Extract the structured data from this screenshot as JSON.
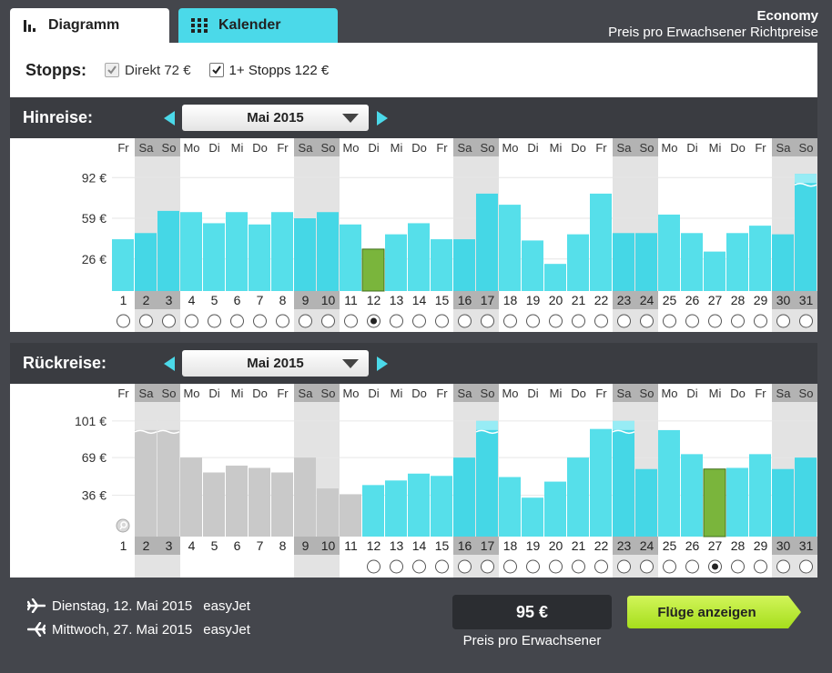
{
  "tabs": {
    "diagram": "Diagramm",
    "calendar": "Kalender"
  },
  "cabin": {
    "class_label": "Economy",
    "price_note": "Preis pro Erwachsener Richtpreise"
  },
  "stops": {
    "label": "Stopps:",
    "direct": "Direkt 72 €",
    "direct_checked": true,
    "direct_disabled": true,
    "one_plus": "1+ Stopps 122 €",
    "one_plus_checked": true
  },
  "chart_data": [
    {
      "type": "bar",
      "title": "Hinreise:",
      "month": "Mai 2015",
      "weekdays": [
        "Fr",
        "Sa",
        "So",
        "Mo",
        "Di",
        "Mi",
        "Do",
        "Fr",
        "Sa",
        "So",
        "Mo",
        "Di",
        "Mi",
        "Do",
        "Fr",
        "Sa",
        "So",
        "Mo",
        "Di",
        "Mi",
        "Do",
        "Fr",
        "Sa",
        "So",
        "Mo",
        "Di",
        "Mi",
        "Do",
        "Fr",
        "Sa",
        "So"
      ],
      "categories": [
        "1",
        "2",
        "3",
        "4",
        "5",
        "6",
        "7",
        "8",
        "9",
        "10",
        "11",
        "12",
        "13",
        "14",
        "15",
        "16",
        "17",
        "18",
        "19",
        "20",
        "21",
        "22",
        "23",
        "24",
        "25",
        "26",
        "27",
        "28",
        "29",
        "30",
        "31"
      ],
      "values": [
        42,
        47,
        65,
        64,
        55,
        64,
        54,
        64,
        59,
        64,
        54,
        34,
        46,
        55,
        42,
        42,
        79,
        70,
        41,
        22,
        46,
        79,
        47,
        47,
        62,
        47,
        32,
        47,
        53,
        46,
        95
      ],
      "yticks": [
        {
          "value": 92,
          "label": "92 €"
        },
        {
          "value": 59,
          "label": "59 €"
        },
        {
          "value": 26,
          "label": "26 €"
        }
      ],
      "ylim": [
        0,
        104
      ],
      "over_range": [
        31
      ],
      "unavailable": [],
      "selected": 12,
      "radio_days": [
        "1",
        "2",
        "3",
        "4",
        "5",
        "6",
        "7",
        "8",
        "9",
        "10",
        "11",
        "12",
        "13",
        "14",
        "15",
        "16",
        "17",
        "18",
        "19",
        "20",
        "21",
        "22",
        "23",
        "24",
        "25",
        "26",
        "27",
        "28",
        "29",
        "30",
        "31"
      ]
    },
    {
      "type": "bar",
      "title": "Rückreise:",
      "month": "Mai 2015",
      "weekdays": [
        "Fr",
        "Sa",
        "So",
        "Mo",
        "Di",
        "Mi",
        "Do",
        "Fr",
        "Sa",
        "So",
        "Mo",
        "Di",
        "Mi",
        "Do",
        "Fr",
        "Sa",
        "So",
        "Mo",
        "Di",
        "Mi",
        "Do",
        "Fr",
        "Sa",
        "So",
        "Mo",
        "Di",
        "Mi",
        "Do",
        "Fr",
        "Sa",
        "So"
      ],
      "categories": [
        "1",
        "2",
        "3",
        "4",
        "5",
        "6",
        "7",
        "8",
        "9",
        "10",
        "11",
        "12",
        "13",
        "14",
        "15",
        "16",
        "17",
        "18",
        "19",
        "20",
        "21",
        "22",
        "23",
        "24",
        "25",
        "26",
        "27",
        "28",
        "29",
        "30",
        "31"
      ],
      "values": [
        0,
        101,
        101,
        69,
        56,
        62,
        60,
        56,
        69,
        42,
        37,
        45,
        49,
        55,
        53,
        69,
        101,
        52,
        34,
        48,
        69,
        94,
        101,
        59,
        93,
        72,
        59,
        60,
        72,
        59,
        69
      ],
      "yticks": [
        {
          "value": 101,
          "label": "101 €"
        },
        {
          "value": 69,
          "label": "69 €"
        },
        {
          "value": 36,
          "label": "36 €"
        }
      ],
      "ylim": [
        0,
        112
      ],
      "over_range": [
        2,
        3,
        17,
        23
      ],
      "unavailable": [
        1,
        2,
        3,
        4,
        5,
        6,
        7,
        8,
        9,
        10,
        11
      ],
      "selected": 27,
      "radio_days": [
        "12",
        "13",
        "14",
        "15",
        "16",
        "17",
        "18",
        "19",
        "20",
        "21",
        "22",
        "23",
        "24",
        "25",
        "26",
        "27",
        "28",
        "29",
        "30",
        "31"
      ]
    }
  ],
  "summary": {
    "outbound_date": "Dienstag, 12. Mai 2015",
    "outbound_carrier": "easyJet",
    "return_date": "Mittwoch, 27. Mai 2015",
    "return_carrier": "easyJet",
    "price": "95 €",
    "price_label": "Preis pro Erwachsener",
    "cta_label": "Flüge anzeigen"
  },
  "colors": {
    "bar": "#56dfea",
    "bar_weekend": "#45d7e6",
    "bar_selected": "#7ab53c",
    "bar_unavailable": "#c9c9c9",
    "weekend_band": "#e3e3e3",
    "weekend_header": "#b3b3b3",
    "cta": "#b6ea2a"
  }
}
